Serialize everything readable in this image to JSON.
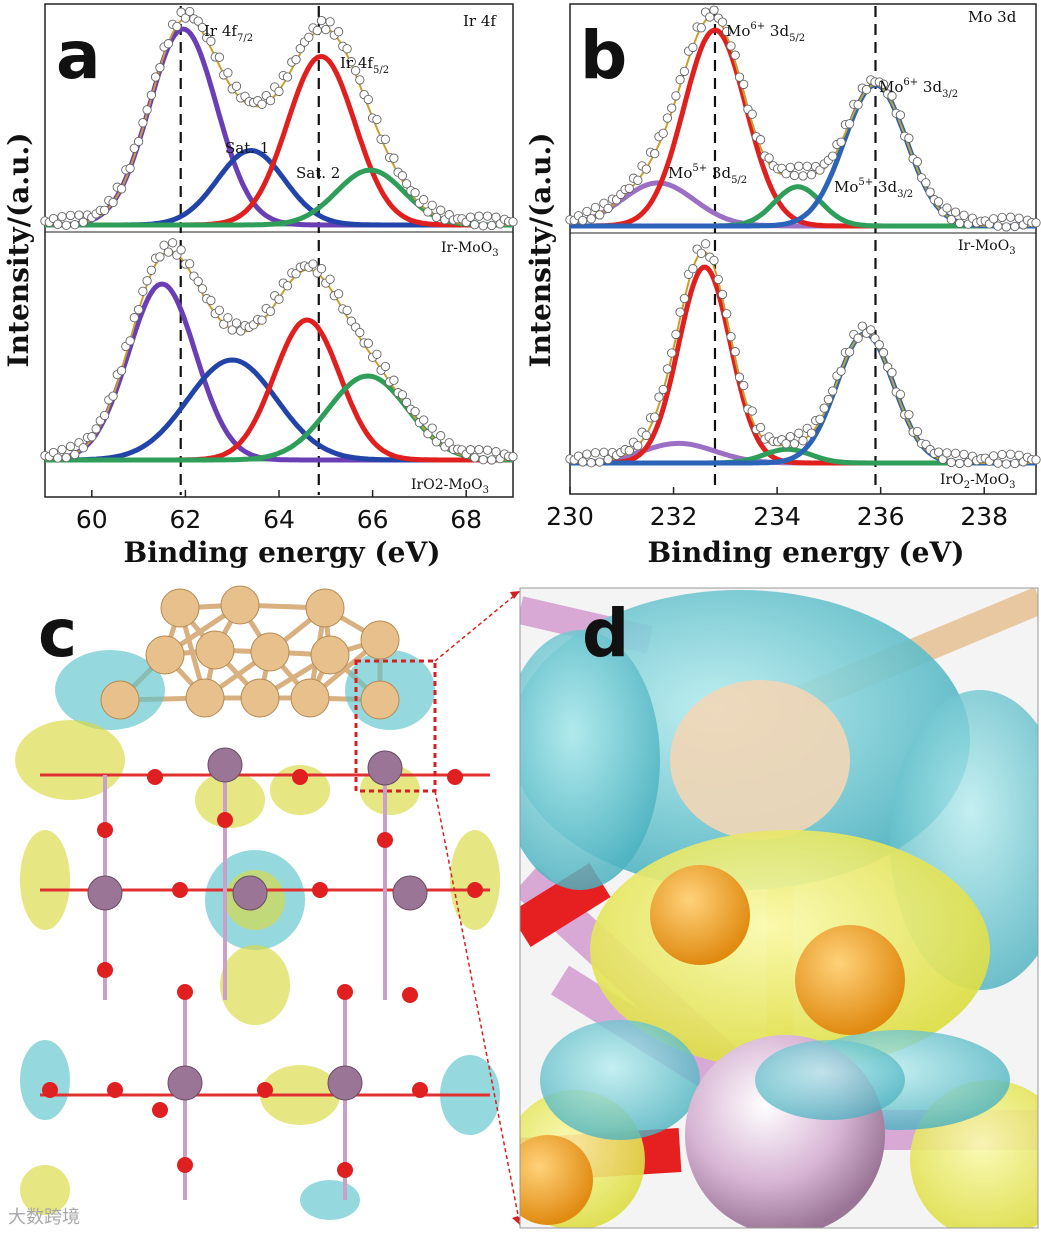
{
  "figure": {
    "panel_labels": [
      "a",
      "b",
      "c",
      "d"
    ],
    "watermark": "大数跨境"
  },
  "chart_data": [
    {
      "type": "line",
      "panel": "a",
      "title": "Ir 4f",
      "xlabel": "Binding energy (eV)",
      "ylabel": "Intensity/(a.u.)",
      "xlim": [
        59,
        69
      ],
      "xticks": [
        60,
        62,
        64,
        66,
        68
      ],
      "reference_lines": [
        61.9,
        64.85
      ],
      "subplots": [
        {
          "label": "Ir-MoO3",
          "label_main": "Ir-MoO",
          "label_sub": "3",
          "peaks": [
            {
              "name": "Ir 4f7/2",
              "center": 61.95,
              "amplitude": 1.0,
              "width": 0.72,
              "color": "#6a3fb5"
            },
            {
              "name": "Sat. 1",
              "center": 63.4,
              "amplitude": 0.38,
              "width": 0.72,
              "color": "#2244a8"
            },
            {
              "name": "Ir 4f5/2",
              "center": 64.9,
              "amplitude": 0.86,
              "width": 0.72,
              "color": "#e0201e"
            },
            {
              "name": "Sat. 2",
              "center": 65.95,
              "amplitude": 0.28,
              "width": 0.72,
              "color": "#2e9e5a"
            }
          ],
          "annotations": [
            {
              "main": "Ir 4f",
              "sub": "7/2"
            },
            {
              "main": "Ir 4f",
              "sub": "5/2"
            },
            {
              "main": "Sat. 1",
              "sub": ""
            },
            {
              "main": "Sat. 2",
              "sub": ""
            }
          ]
        },
        {
          "label": "IrO2-MoO3",
          "label_main": "IrO2-MoO",
          "label_sub": "3",
          "peaks": [
            {
              "name": "Ir 4f7/2",
              "center": 61.5,
              "amplitude": 0.88,
              "width": 0.72,
              "color": "#6a3fb5"
            },
            {
              "name": "Sat. 1",
              "center": 63.0,
              "amplitude": 0.5,
              "width": 0.95,
              "color": "#2244a8"
            },
            {
              "name": "Ir 4f5/2",
              "center": 64.6,
              "amplitude": 0.7,
              "width": 0.7,
              "color": "#e0201e"
            },
            {
              "name": "Sat. 2",
              "center": 65.9,
              "amplitude": 0.42,
              "width": 0.85,
              "color": "#2e9e5a"
            }
          ],
          "annotations": []
        }
      ],
      "envelope_color": "#c8a030"
    },
    {
      "type": "line",
      "panel": "b",
      "title": "Mo 3d",
      "xlabel": "Binding energy (eV)",
      "ylabel": "Intensity/(a.u.)",
      "xlim": [
        230,
        239
      ],
      "xticks": [
        230,
        232,
        234,
        236,
        238
      ],
      "reference_lines": [
        232.8,
        235.9
      ],
      "subplots": [
        {
          "label": "Ir-MoO3",
          "label_main": "Ir-MoO",
          "label_sub": "3",
          "peaks": [
            {
              "name": "Mo5+ 3d5/2",
              "center": 231.7,
              "amplitude": 0.22,
              "width": 0.7,
              "color": "#9b6fc4"
            },
            {
              "name": "Mo6+ 3d5/2",
              "center": 232.8,
              "amplitude": 1.0,
              "width": 0.6,
              "color": "#e0201e"
            },
            {
              "name": "Mo5+ 3d3/2",
              "center": 234.4,
              "amplitude": 0.2,
              "width": 0.45,
              "color": "#2e9e5a"
            },
            {
              "name": "Mo6+ 3d3/2",
              "center": 235.9,
              "amplitude": 0.72,
              "width": 0.6,
              "color": "#2a63b8"
            }
          ],
          "annotations": [
            {
              "main": "Mo",
              "sup": "6+",
              "rest": " 3d",
              "sub": "5/2"
            },
            {
              "main": "Mo",
              "sup": "6+",
              "rest": " 3d",
              "sub": "3/2"
            },
            {
              "main": "Mo",
              "sup": "5+",
              "rest": " 3d",
              "sub": "5/2"
            },
            {
              "main": "Mo",
              "sup": "5+",
              "rest": " 3d",
              "sub": "3/2"
            }
          ]
        },
        {
          "label": "IrO2-MoO3",
          "label_main": "IrO",
          "label_mid": "2",
          "label_tail": "-MoO",
          "label_sub": "3",
          "peaks": [
            {
              "name": "Mo5+ 3d5/2",
              "center": 232.1,
              "amplitude": 0.1,
              "width": 0.7,
              "color": "#9b6fc4"
            },
            {
              "name": "Mo6+ 3d5/2",
              "center": 232.6,
              "amplitude": 1.0,
              "width": 0.5,
              "color": "#e0201e"
            },
            {
              "name": "Mo5+ 3d3/2",
              "center": 234.2,
              "amplitude": 0.07,
              "width": 0.45,
              "color": "#2e9e5a"
            },
            {
              "name": "Mo6+ 3d3/2",
              "center": 235.7,
              "amplitude": 0.66,
              "width": 0.55,
              "color": "#2a63b8"
            }
          ],
          "annotations": []
        }
      ],
      "envelope_color": "#c8a030"
    }
  ]
}
